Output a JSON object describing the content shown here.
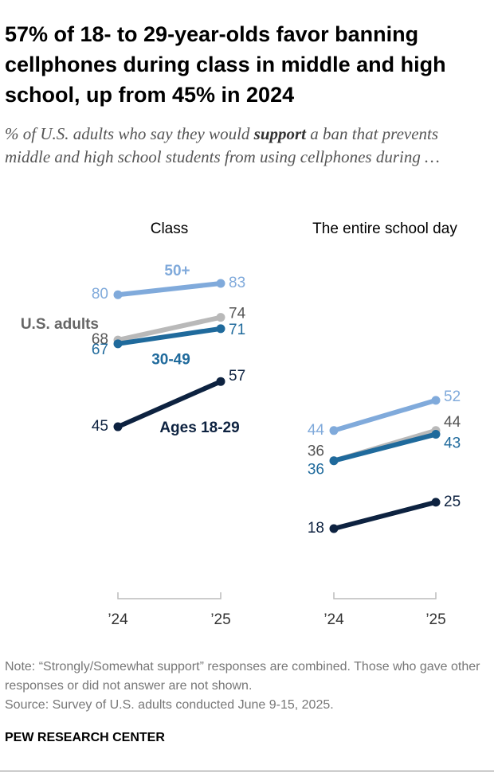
{
  "title": "57% of 18- to 29-year-olds favor banning cellphones during class in middle and high school, up from 45% in 2024",
  "subtitle": [
    "% of U.S. adults who say they would ",
    "support",
    " a ban that prevents middle and high school students from using cellphones during …"
  ],
  "note": "Note: “Strongly/Somewhat support” responses are combined. Those who gave other responses or did not answer are not shown.",
  "source": "Source: Survey of U.S. adults conducted June 9-15, 2025.",
  "brand": "PEW RESEARCH CENTER",
  "chart_data": [
    {
      "type": "line",
      "title": "Class",
      "x": [
        "’24",
        "’25"
      ],
      "series": [
        {
          "name": "50+",
          "color": "#80aadb",
          "values": [
            80,
            83
          ]
        },
        {
          "name": "U.S. adults",
          "color": "#b9b9b9",
          "values": [
            68,
            74
          ]
        },
        {
          "name": "30-49",
          "color": "#1f6a9c",
          "values": [
            67,
            71
          ]
        },
        {
          "name": "Ages 18-29",
          "color": "#0d2240",
          "values": [
            45,
            57
          ]
        }
      ]
    },
    {
      "type": "line",
      "title": "The entire school day",
      "x": [
        "’24",
        "’25"
      ],
      "series": [
        {
          "color": "#80aadb",
          "values": [
            44,
            52
          ]
        },
        {
          "color": "#b9b9b9",
          "values": [
            36,
            44
          ]
        },
        {
          "color": "#1f6a9c",
          "values": [
            36,
            43
          ]
        },
        {
          "color": "#0d2240",
          "values": [
            18,
            25
          ]
        }
      ]
    }
  ]
}
